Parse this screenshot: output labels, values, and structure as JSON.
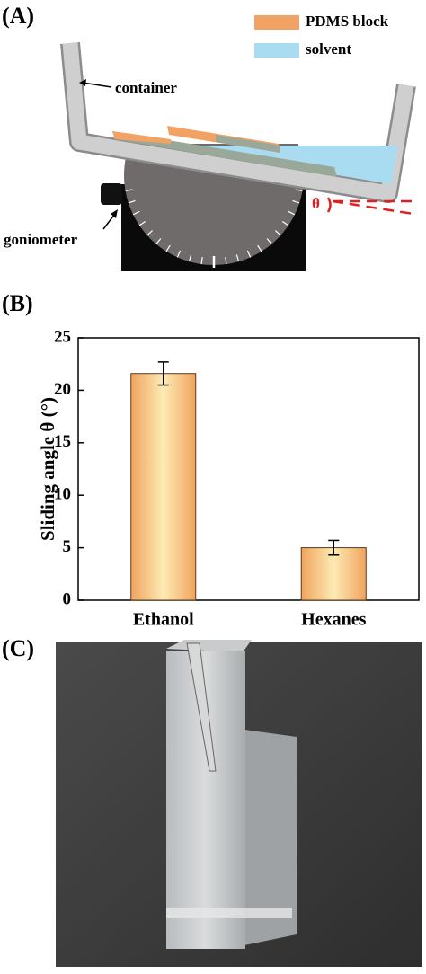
{
  "diagram": {
    "panel_label": "(A)",
    "legend": [
      {
        "name": "PDMS block",
        "color": "#f2a263"
      },
      {
        "name": "solvent",
        "color": "#a9dcf1"
      }
    ],
    "labels": {
      "container": "container",
      "goniometer": "goniometer",
      "angle": "θ"
    }
  },
  "chart_data": {
    "panel_label": "(B)",
    "type": "bar",
    "y_label": "Sliding angle θ (°)",
    "categories": [
      "Ethanol",
      "Hexanes"
    ],
    "values": [
      21.6,
      5.0
    ],
    "errors": [
      1.1,
      0.7
    ],
    "ylim": [
      0,
      25
    ],
    "yticks": [
      0,
      5,
      10,
      15,
      20,
      25
    ]
  },
  "photo": {
    "panel_label": "(C)"
  }
}
